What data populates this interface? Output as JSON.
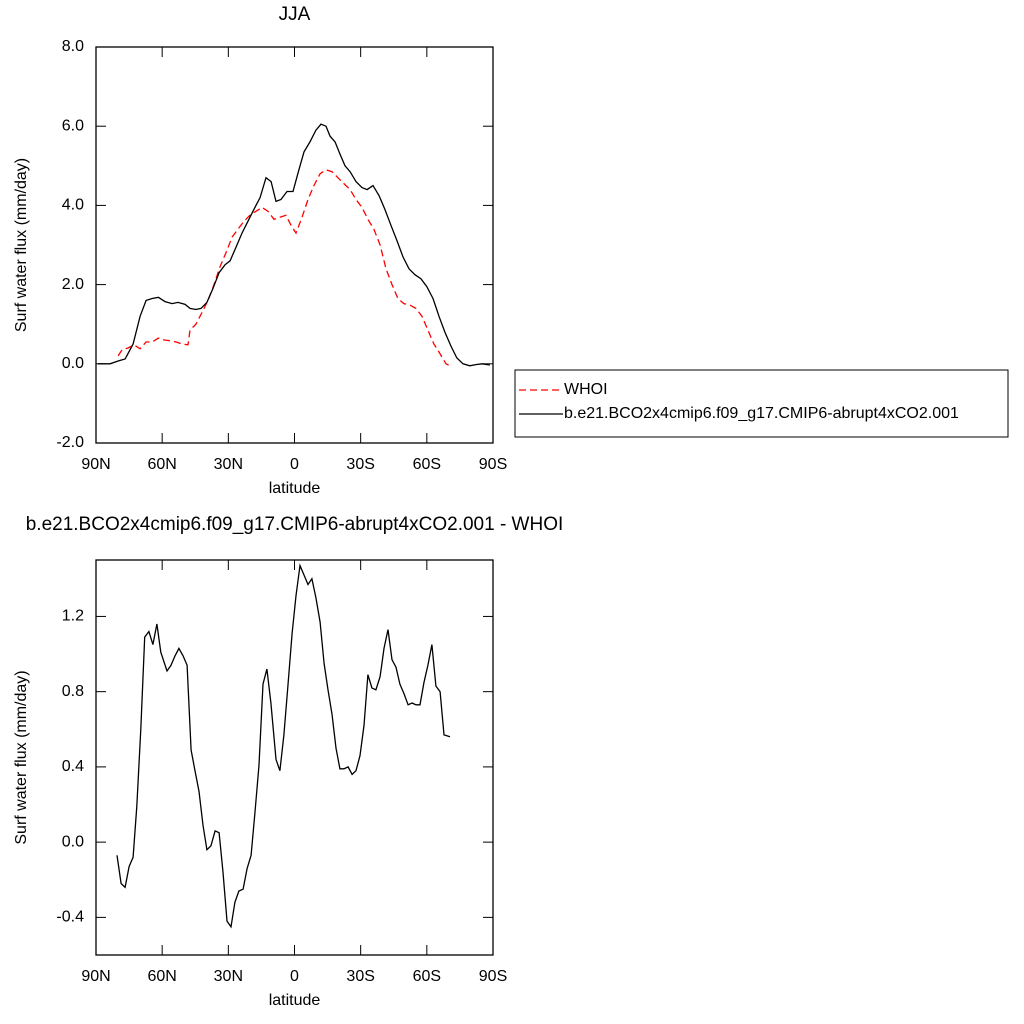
{
  "chart_data": [
    {
      "type": "line",
      "title": "JJA",
      "xlabel": "latitude",
      "ylabel": "Surf water flux (mm/day)",
      "xlim": [
        90,
        -90
      ],
      "ylim": [
        -2,
        8
      ],
      "xticks": [
        {
          "value": 90,
          "label": "90N"
        },
        {
          "value": 60,
          "label": "60N"
        },
        {
          "value": 30,
          "label": "30N"
        },
        0,
        {
          "value": -30,
          "label": "30S"
        },
        {
          "value": -60,
          "label": "60S"
        },
        {
          "value": -90,
          "label": "90S"
        }
      ],
      "yticks": [
        {
          "value": -2,
          "label": "-2.0"
        },
        {
          "value": 0,
          "label": "0.0"
        },
        {
          "value": 2,
          "label": "2.0"
        },
        {
          "value": 4,
          "label": "4.0"
        },
        {
          "value": 6,
          "label": "6.0"
        },
        {
          "value": 8,
          "label": "8.0"
        }
      ],
      "legend": "right",
      "series": [
        {
          "name": "WHOI",
          "color": "#ff0000",
          "dashed": true,
          "x": [
            80,
            78.2,
            75.5,
            72.8,
            70,
            67.3,
            64.5,
            61.7,
            59,
            56.4,
            53.7,
            51,
            48.3,
            47.4,
            44.7,
            41.9,
            39.2,
            36.5,
            33.8,
            31.1,
            28.3,
            25.6,
            22.9,
            20.2,
            17.5,
            14.7,
            12,
            9.3,
            6.6,
            3.9,
            1.6,
            -0.7,
            -3.4,
            -6.1,
            -8.8,
            -11.6,
            -14.3,
            -17,
            -19.7,
            -22.4,
            -25.2,
            -27.9,
            -30.6,
            -33.3,
            -36,
            -38.8,
            -41.5,
            -44.2,
            -46.9,
            -49.6,
            -52.4,
            -55.1,
            -57.8,
            -60.5,
            -63.2,
            -66,
            -68.7,
            -70.5
          ],
          "values": [
            0.2,
            0.35,
            0.4,
            0.48,
            0.38,
            0.55,
            0.55,
            0.65,
            0.6,
            0.58,
            0.55,
            0.5,
            0.48,
            0.85,
            1.0,
            1.3,
            1.6,
            2.0,
            2.45,
            2.8,
            3.2,
            3.4,
            3.6,
            3.75,
            3.85,
            3.95,
            3.85,
            3.65,
            3.7,
            3.75,
            3.5,
            3.3,
            3.7,
            4.15,
            4.5,
            4.8,
            4.9,
            4.85,
            4.7,
            4.55,
            4.4,
            4.15,
            3.95,
            3.65,
            3.4,
            3.0,
            2.4,
            2.0,
            1.65,
            1.52,
            1.48,
            1.4,
            1.2,
            0.85,
            0.5,
            0.25,
            0.0,
            -0.05
          ]
        },
        {
          "name": "b.e21.BCO2x4cmip6.f09_g17.CMIP6-abrupt4xCO2.001",
          "color": "#000000",
          "dashed": false,
          "x": [
            89.1,
            83.6,
            80,
            76.8,
            73.2,
            70,
            67.3,
            64.5,
            61.7,
            58.7,
            55.5,
            52.8,
            49.6,
            47.4,
            44.7,
            42.4,
            39.7,
            37,
            34.2,
            31.5,
            29.2,
            26.5,
            23.8,
            21.1,
            18.4,
            15.6,
            12.9,
            10.6,
            8.4,
            6.1,
            3.4,
            0.7,
            -2,
            -4.3,
            -7,
            -9.7,
            -12,
            -14.3,
            -16.1,
            -18.4,
            -20.6,
            -22.9,
            -25.2,
            -27.9,
            -30.6,
            -32.9,
            -35.6,
            -38.3,
            -41,
            -43.7,
            -46.5,
            -49.2,
            -51.9,
            -54.6,
            -57.3,
            -60,
            -62.8,
            -65.5,
            -68.2,
            -70.9,
            -73.6,
            -76.4,
            -79.5,
            -82.2,
            -85,
            -88.6
          ],
          "values": [
            0.0,
            0.0,
            0.07,
            0.12,
            0.5,
            1.2,
            1.6,
            1.65,
            1.68,
            1.57,
            1.52,
            1.55,
            1.5,
            1.4,
            1.37,
            1.4,
            1.55,
            1.9,
            2.3,
            2.5,
            2.6,
            2.95,
            3.3,
            3.6,
            3.9,
            4.2,
            4.7,
            4.6,
            4.1,
            4.15,
            4.35,
            4.35,
            4.9,
            5.35,
            5.6,
            5.9,
            6.05,
            6.0,
            5.75,
            5.6,
            5.3,
            5.0,
            4.85,
            4.6,
            4.45,
            4.4,
            4.5,
            4.25,
            3.9,
            3.5,
            3.1,
            2.7,
            2.4,
            2.25,
            2.15,
            1.95,
            1.65,
            1.2,
            0.8,
            0.45,
            0.15,
            0.0,
            -0.05,
            -0.02,
            0.0,
            -0.03
          ]
        }
      ]
    },
    {
      "type": "line",
      "title": "b.e21.BCO2x4cmip6.f09_g17.CMIP6-abrupt4xCO2.001 - WHOI",
      "xlabel": "latitude",
      "ylabel": "Surf water flux (mm/day)",
      "xlim": [
        90,
        -90
      ],
      "ylim": [
        -0.6,
        1.5
      ],
      "xticks": [
        {
          "value": 90,
          "label": "90N"
        },
        {
          "value": 60,
          "label": "60N"
        },
        {
          "value": 30,
          "label": "30N"
        },
        0,
        {
          "value": -30,
          "label": "30S"
        },
        {
          "value": -60,
          "label": "60S"
        },
        {
          "value": -90,
          "label": "90S"
        }
      ],
      "yticks": [
        -0.4,
        {
          "value": 0,
          "label": "0.0"
        },
        0.4,
        0.8,
        1.2
      ],
      "color": "#000000",
      "x": [
        80.5,
        78.6,
        76.8,
        75,
        73.2,
        71.5,
        69.7,
        67.9,
        66,
        64.2,
        62.4,
        60.6,
        57.8,
        56,
        54.2,
        52.4,
        50.5,
        48.7,
        46.9,
        45.1,
        43.3,
        41.5,
        39.7,
        37.9,
        36,
        34.2,
        32.4,
        30.6,
        28.8,
        27,
        25.2,
        23.3,
        21.5,
        19.7,
        17.9,
        16.1,
        14.3,
        12.5,
        10.7,
        8.4,
        6.6,
        4.8,
        3,
        1.1,
        -0.7,
        -2.5,
        -4.3,
        -6.1,
        -7.9,
        -9.7,
        -11.6,
        -13.4,
        -15.2,
        -17,
        -18.8,
        -20.6,
        -22.4,
        -24.3,
        -26.1,
        -27.9,
        -29.7,
        -31.5,
        -33.3,
        -35.1,
        -36.9,
        -38.8,
        -40.6,
        -42.4,
        -44.2,
        -46,
        -47.8,
        -49.6,
        -51.5,
        -53.3,
        -55.1,
        -56.9,
        -58.7,
        -60.5,
        -62.3,
        -64.1,
        -66,
        -67.8,
        -70.5
      ],
      "values": [
        -0.07,
        -0.22,
        -0.24,
        -0.13,
        -0.08,
        0.19,
        0.6,
        1.09,
        1.12,
        1.05,
        1.16,
        1.01,
        0.91,
        0.94,
        0.99,
        1.03,
        0.99,
        0.94,
        0.49,
        0.38,
        0.27,
        0.09,
        -0.04,
        -0.02,
        0.06,
        0.05,
        -0.16,
        -0.42,
        -0.45,
        -0.32,
        -0.26,
        -0.25,
        -0.14,
        -0.07,
        0.16,
        0.41,
        0.84,
        0.92,
        0.74,
        0.44,
        0.38,
        0.57,
        0.83,
        1.11,
        1.31,
        1.47,
        1.42,
        1.37,
        1.4,
        1.3,
        1.17,
        0.95,
        0.81,
        0.68,
        0.5,
        0.39,
        0.39,
        0.4,
        0.36,
        0.38,
        0.46,
        0.62,
        0.89,
        0.82,
        0.81,
        0.88,
        1.03,
        1.13,
        0.97,
        0.93,
        0.84,
        0.79,
        0.73,
        0.74,
        0.73,
        0.73,
        0.85,
        0.94,
        1.05,
        0.83,
        0.8,
        0.57,
        0.56
      ]
    }
  ]
}
